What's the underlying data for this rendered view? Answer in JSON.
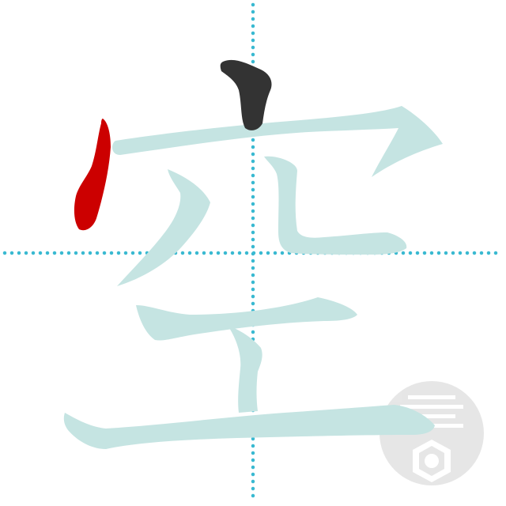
{
  "character": {
    "glyph": "空",
    "stroke_count": 8,
    "current_stroke": 2,
    "completed_strokes": 1
  },
  "colors": {
    "guide_lines": "#39b9d1",
    "remaining_strokes": "#c5e4e2",
    "completed_stroke": "#333333",
    "current_stroke": "#cc0000",
    "watermark": "#d3d3d3"
  },
  "icons": {
    "watermark": "seal-logo-icon"
  }
}
